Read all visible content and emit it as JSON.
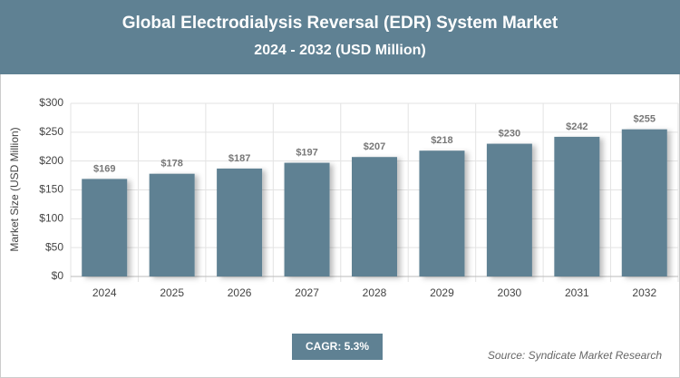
{
  "chart_data": {
    "type": "bar",
    "title": "Global Electrodialysis Reversal (EDR) System Market",
    "subtitle": "2024 - 2032 (USD Million)",
    "y_label": "Market Size (USD Million)",
    "categories": [
      "2024",
      "2025",
      "2026",
      "2027",
      "2028",
      "2029",
      "2030",
      "2031",
      "2032"
    ],
    "values": [
      169,
      178,
      187,
      197,
      207,
      218,
      230,
      242,
      255
    ],
    "value_labels": [
      "$169",
      "$178",
      "$187",
      "$197",
      "$207",
      "$218",
      "$230",
      "$242",
      "$255"
    ],
    "color": "#5f8193",
    "ylim": [
      0,
      300
    ],
    "yticks": [
      {
        "value": 0,
        "label": "$0"
      },
      {
        "value": 50,
        "label": "$50"
      },
      {
        "value": 100,
        "label": "$100"
      },
      {
        "value": 150,
        "label": "$150"
      },
      {
        "value": 200,
        "label": "$200"
      },
      {
        "value": 250,
        "label": "$250"
      },
      {
        "value": 300,
        "label": "$300"
      }
    ],
    "grid": true,
    "cagr": "CAGR: 5.3%",
    "source": "Source: Syndicate Market Research"
  }
}
